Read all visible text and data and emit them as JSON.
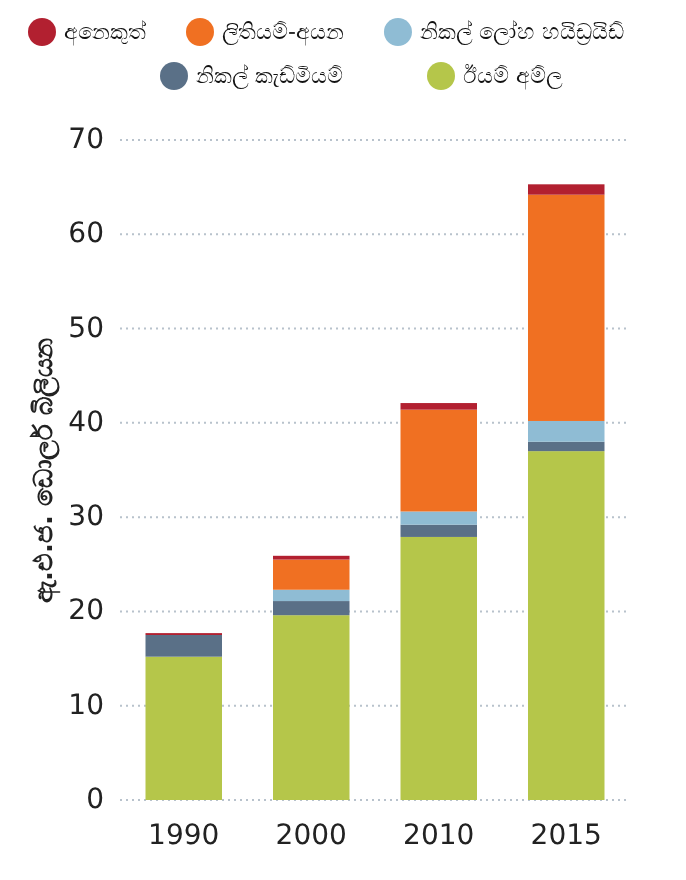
{
  "chart_data": {
    "type": "bar",
    "stacked": true,
    "ylabel": "ඇ.එ.ජ. ඩොලර් බිලියන",
    "categories": [
      "1990",
      "2000",
      "2010",
      "2015"
    ],
    "series": [
      {
        "name": "ඊයම් අම්ල",
        "color": "#b5c64a",
        "values": [
          15.2,
          19.6,
          27.9,
          37.0
        ]
      },
      {
        "name": "නිකල් කැඩ්මියම්",
        "color": "#5a7087",
        "values": [
          2.3,
          1.5,
          1.3,
          1.0
        ]
      },
      {
        "name": "නිකල් ලෝහ හයිඩ්‍රයිඩ්",
        "color": "#8fbcd4",
        "values": [
          0.0,
          1.2,
          1.4,
          2.2
        ]
      },
      {
        "name": "ලිතියම්-අයන",
        "color": "#f07022",
        "values": [
          0.0,
          3.2,
          10.8,
          24.0
        ]
      },
      {
        "name": "අනෙකුත්",
        "color": "#b22030",
        "values": [
          0.2,
          0.4,
          0.7,
          1.1
        ]
      }
    ],
    "ylim": [
      0,
      70
    ],
    "yticks": [
      0,
      10,
      20,
      30,
      40,
      50,
      60,
      70
    ],
    "grid": "y",
    "legend": "top"
  }
}
